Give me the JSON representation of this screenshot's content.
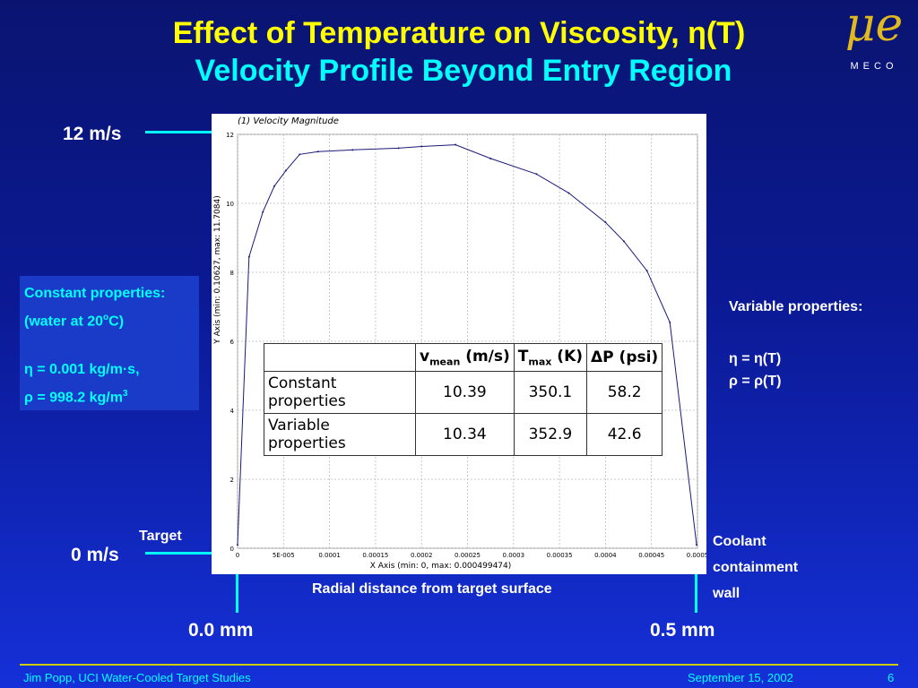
{
  "title": {
    "line1": "Effect of Temperature on Viscosity, η(T)",
    "line2": "Velocity Profile Beyond Entry Region"
  },
  "logo": {
    "glyph": "μe",
    "text": "MECO"
  },
  "labels": {
    "v_top": "12 m/s",
    "v_bottom": "0 m/s",
    "target": "Target",
    "coolant": [
      "Coolant",
      "containment",
      "wall"
    ],
    "radial": "Radial distance from target surface",
    "mm_left": "0.0 mm",
    "mm_right": "0.5 mm"
  },
  "constant": {
    "title": "Constant properties:",
    "subtitle": " (water at 20",
    "subtitle_sup": "o",
    "subtitle_end": "C)",
    "eta": "η = 0.001 kg/m·s,",
    "rho": "ρ = 998.2 kg/m",
    "rho_sup": "3"
  },
  "variable": {
    "title": "Variable properties:",
    "eta": "η = η(T)",
    "rho": "ρ = ρ(T)"
  },
  "table": {
    "headers": [
      "v",
      "mean",
      " (m/s)",
      "T",
      "max",
      " (K)",
      "ΔP (psi)"
    ],
    "rows": [
      [
        "Constant properties",
        "10.39",
        "350.1",
        "58.2"
      ],
      [
        "Variable properties",
        "10.34",
        "352.9",
        "42.6"
      ]
    ]
  },
  "footer": {
    "left": "Jim Popp, UCI  Water-Cooled Target Studies",
    "date": "September 15, 2002",
    "page": "6"
  },
  "chart_data": {
    "type": "line",
    "title": "(1) Velocity Magnitude",
    "xlabel": "X Axis (min: 0, max: 0.000499474)",
    "ylabel": "Y Axis (min: 0.10627, max: 11.7084)",
    "xlim": [
      0,
      0.0005
    ],
    "ylim": [
      0,
      12
    ],
    "x_ticks": [
      "0",
      "5E-005",
      "0.0001",
      "0.00015",
      "0.0002",
      "0.00025",
      "0.0003",
      "0.00035",
      "0.0004",
      "0.00045",
      "0.0005"
    ],
    "y_ticks": [
      "0",
      "2",
      "4",
      "6",
      "8",
      "10",
      "12"
    ],
    "grid": true,
    "series": [
      {
        "x": [
          0,
          1.25e-05,
          2.75e-05,
          4e-05,
          5.25e-05,
          6.75e-05,
          8.75e-05,
          0.000125,
          0.000175,
          0.0002,
          0.000237,
          0.000275,
          0.000325,
          0.00036,
          0.0004,
          0.00042,
          0.000445,
          0.00047,
          0.000499
        ],
        "y": [
          0.1,
          8.45,
          9.75,
          10.5,
          10.95,
          11.42,
          11.5,
          11.55,
          11.6,
          11.65,
          11.7,
          11.3,
          10.85,
          10.3,
          9.45,
          8.9,
          8.05,
          6.55,
          0.1
        ]
      }
    ]
  }
}
